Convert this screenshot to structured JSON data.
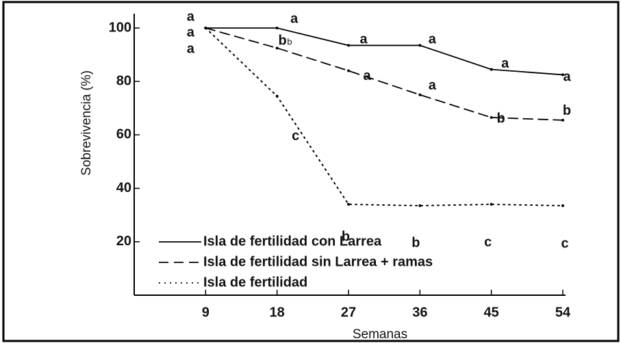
{
  "chart_data": {
    "type": "line",
    "x_label": "Semanas",
    "y_label": "Sobrevivencia (%)",
    "x": [
      9,
      18,
      27,
      36,
      45,
      54
    ],
    "xlim": [
      0,
      54
    ],
    "xticks": [
      9,
      18,
      27,
      36,
      45,
      54
    ],
    "ylim": [
      0,
      100
    ],
    "yticks": [
      20,
      40,
      60,
      80,
      100
    ],
    "series": [
      {
        "name": "Isla de fertilidad con Larrea",
        "color": "#000000",
        "dash": "solid",
        "values": [
          100,
          100,
          93.5,
          93.5,
          84.5,
          82.5
        ],
        "letters": [
          "a",
          "a",
          "a",
          "a",
          "a",
          "a"
        ]
      },
      {
        "name": "Isla de fertilidad sin Larrea + ramas",
        "color": "#000000",
        "dash": "dashed",
        "values": [
          100,
          92.5,
          84,
          75,
          66.5,
          65.5
        ],
        "letters": [
          "a",
          "b",
          "a",
          "a",
          "b",
          "b"
        ]
      },
      {
        "name": "Isla de fertilidad",
        "color": "#000000",
        "dash": "dotted",
        "values": [
          100,
          74.5,
          34,
          33.5,
          34,
          33.5
        ],
        "letters": [
          "a",
          "c",
          "b",
          "b",
          "c",
          "c"
        ]
      }
    ],
    "annotations": [
      "b"
    ],
    "legend": "lower left"
  }
}
